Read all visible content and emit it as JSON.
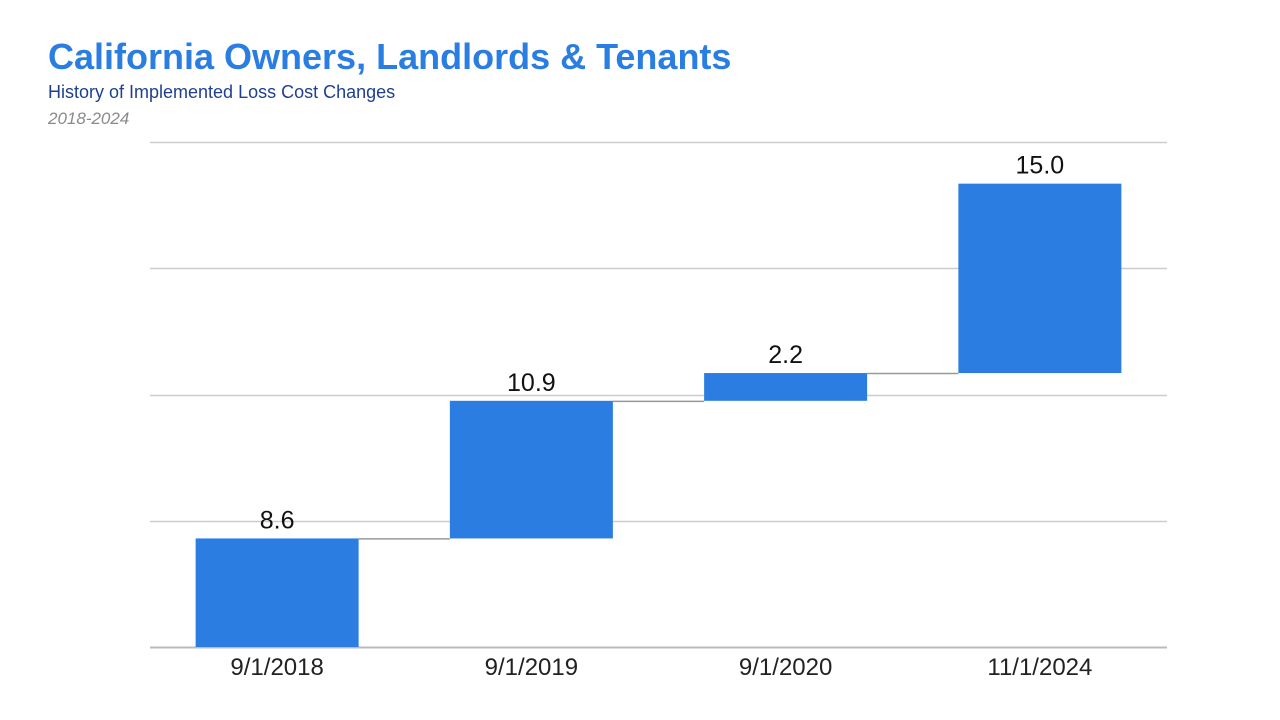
{
  "header": {
    "title": "California Owners, Landlords & Tenants",
    "subtitle": "History of Implemented Loss Cost Changes",
    "years": "2018-2024"
  },
  "colors": {
    "title": "#2a7de1",
    "subtitle": "#1f3f8f",
    "bar": "#2b7de1",
    "grid": "#cccccc",
    "connector": "#999999"
  },
  "chart_data": {
    "type": "bar",
    "subtype": "waterfall",
    "categories": [
      "9/1/2018",
      "9/1/2019",
      "9/1/2020",
      "11/1/2024"
    ],
    "values": [
      8.6,
      10.9,
      2.2,
      15.0
    ],
    "data_labels": [
      "8.6",
      "10.9",
      "2.2",
      "15.0"
    ],
    "title": "California Owners, Landlords & Tenants",
    "subtitle": "History of Implemented Loss Cost Changes",
    "xlabel": "",
    "ylabel": "",
    "ylim": [
      0,
      40
    ],
    "y_gridlines": [
      0,
      10,
      20,
      30,
      40
    ],
    "grid": true,
    "legend": "none"
  }
}
